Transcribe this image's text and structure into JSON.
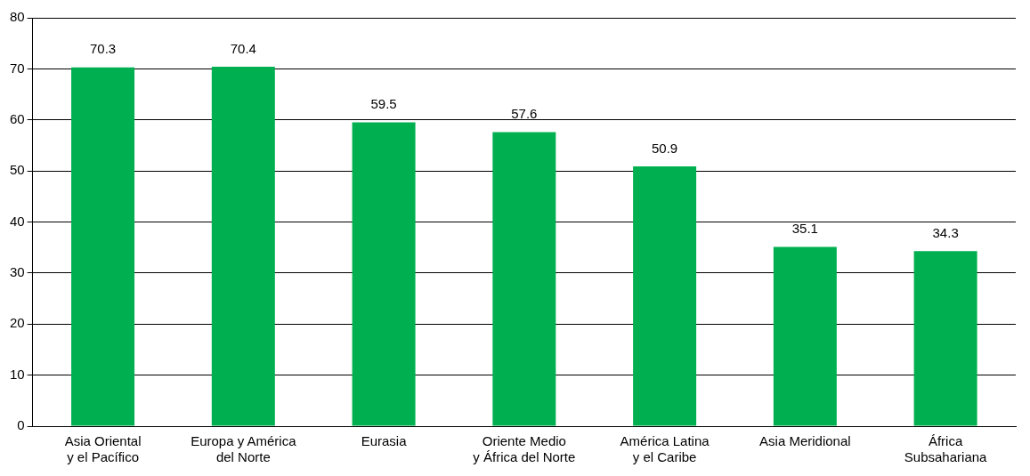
{
  "chart_data": {
    "type": "bar",
    "categories": [
      "Asia Oriental\ny el Pacífico",
      "Europa y América\ndel Norte",
      "Eurasia",
      "Oriente Medio\ny África del Norte",
      "América Latina\ny el Caribe",
      "Asia Meridional",
      "África\nSubsahariana"
    ],
    "values": [
      70.3,
      70.4,
      59.5,
      57.6,
      50.9,
      35.1,
      34.3
    ],
    "color": "#00b050",
    "ylim": [
      0,
      80
    ],
    "yticks": [
      0,
      10,
      20,
      30,
      40,
      50,
      60,
      70,
      80
    ],
    "grid": "y",
    "data_labels": true
  }
}
